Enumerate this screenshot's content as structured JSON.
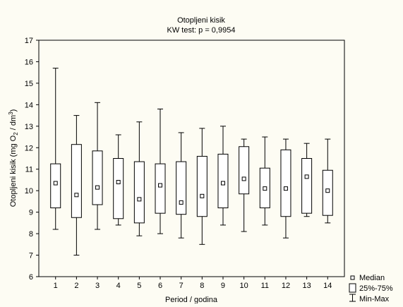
{
  "chart_data": {
    "type": "box",
    "title": "Otopljeni kisik",
    "subtitle": "KW test: p = 0,9954",
    "xlabel": "Period / godina",
    "ylabel": "Otopljeni kisik (mg O2 / dm3)",
    "ylabel_parts": {
      "pre": "Otopljeni kisik (mg O",
      "sub": "2",
      "mid": " / dm",
      "sup": "3",
      "post": ")"
    },
    "ylim": [
      6,
      17
    ],
    "yticks": [
      6,
      7,
      8,
      9,
      10,
      11,
      12,
      13,
      14,
      15,
      16,
      17
    ],
    "categories": [
      "1",
      "2",
      "3",
      "4",
      "5",
      "6",
      "7",
      "8",
      "9",
      "10",
      "11",
      "12",
      "13",
      "14"
    ],
    "boxes": [
      {
        "category": "1",
        "min": 8.2,
        "q1": 9.2,
        "median": 10.35,
        "q3": 11.25,
        "max": 15.7
      },
      {
        "category": "2",
        "min": 7.0,
        "q1": 8.75,
        "median": 9.8,
        "q3": 12.15,
        "max": 13.5
      },
      {
        "category": "3",
        "min": 8.2,
        "q1": 9.35,
        "median": 10.15,
        "q3": 11.85,
        "max": 14.1
      },
      {
        "category": "4",
        "min": 8.4,
        "q1": 8.7,
        "median": 10.4,
        "q3": 11.5,
        "max": 12.6
      },
      {
        "category": "5",
        "min": 7.9,
        "q1": 8.5,
        "median": 9.6,
        "q3": 11.35,
        "max": 13.2
      },
      {
        "category": "6",
        "min": 8.0,
        "q1": 8.95,
        "median": 10.25,
        "q3": 11.25,
        "max": 13.8
      },
      {
        "category": "7",
        "min": 7.8,
        "q1": 8.9,
        "median": 9.45,
        "q3": 11.35,
        "max": 12.7
      },
      {
        "category": "8",
        "min": 7.5,
        "q1": 8.8,
        "median": 9.75,
        "q3": 11.6,
        "max": 12.9
      },
      {
        "category": "9",
        "min": 8.4,
        "q1": 9.2,
        "median": 10.35,
        "q3": 11.7,
        "max": 13.0
      },
      {
        "category": "10",
        "min": 8.1,
        "q1": 9.85,
        "median": 10.55,
        "q3": 12.05,
        "max": 12.4
      },
      {
        "category": "11",
        "min": 8.4,
        "q1": 9.2,
        "median": 10.1,
        "q3": 11.05,
        "max": 12.5
      },
      {
        "category": "12",
        "min": 7.8,
        "q1": 8.8,
        "median": 10.1,
        "q3": 11.9,
        "max": 12.4
      },
      {
        "category": "13",
        "min": 8.8,
        "q1": 8.95,
        "median": 10.65,
        "q3": 11.5,
        "max": 12.2
      },
      {
        "category": "14",
        "min": 8.5,
        "q1": 8.85,
        "median": 10.0,
        "q3": 10.95,
        "max": 12.4
      }
    ],
    "legend": {
      "placement": "bottom-right",
      "items": [
        {
          "symbol": "point",
          "label": "Median"
        },
        {
          "symbol": "box",
          "label": "25%-75%"
        },
        {
          "symbol": "whisker",
          "label": "Min-Max"
        }
      ]
    },
    "grid": false
  }
}
